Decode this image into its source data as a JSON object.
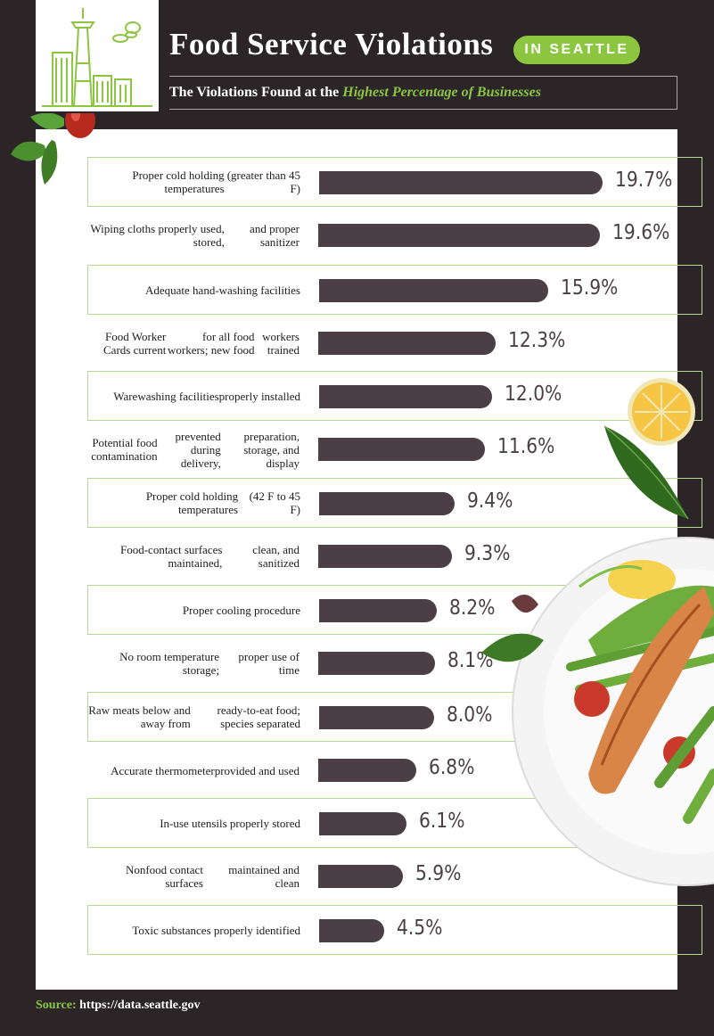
{
  "header": {
    "title": "Food Service Violations",
    "badge": "IN SEATTLE",
    "subtitle_prefix": "The Violations Found at the ",
    "subtitle_highlight": "Highest Percentage of Businesses"
  },
  "source": {
    "label": "Source:",
    "url": "https://data.seattle.gov"
  },
  "colors": {
    "background": "#2b2527",
    "accent_green": "#8cc540",
    "bar": "#4b3f45",
    "panel": "#ffffff"
  },
  "icons": [
    "seattle-skyline-icon",
    "basil-tomato-decoration",
    "lemon-leaf-decoration",
    "salmon-plate-decoration"
  ],
  "chart_data": {
    "type": "bar",
    "orientation": "horizontal",
    "value_suffix": "%",
    "xlim": [
      0,
      19.7
    ],
    "categories": [
      "Proper cold holding temperatures (greater than  45 F)",
      "Wiping cloths properly used, stored, and proper sanitizer",
      "Adequate hand-washing facilities",
      "Food Worker Cards current for all food workers; new food workers trained",
      "Warewashing facilities properly installed",
      "Potential food contamination prevented during delivery, preparation, storage, and display",
      "Proper cold holding temperatures (42 F to 45 F)",
      "Food-contact surfaces maintained, clean, and sanitized",
      "Proper cooling procedure",
      "No room temperature storage; proper use of time",
      "Raw meats below and away from ready-to-eat food; species separated",
      "Accurate thermometer provided and used",
      "In-use utensils properly stored",
      "Nonfood contact surfaces maintained and clean",
      "Toxic substances properly identified"
    ],
    "label_lines": [
      [
        "Proper cold holding temperatures",
        "(greater than  45 F)"
      ],
      [
        "Wiping cloths properly used, stored,",
        "and proper sanitizer"
      ],
      [
        "Adequate hand-washing facilities"
      ],
      [
        "Food Worker Cards current",
        "for all food workers; new food",
        "workers trained"
      ],
      [
        "Warewashing facilities",
        "properly installed"
      ],
      [
        "Potential food contamination",
        "prevented during delivery,",
        "preparation, storage, and display"
      ],
      [
        "Proper cold holding temperatures",
        "(42 F to 45 F)"
      ],
      [
        "Food-contact surfaces maintained,",
        "clean, and sanitized"
      ],
      [
        "Proper cooling procedure"
      ],
      [
        "No room temperature storage;",
        "proper use of time"
      ],
      [
        "Raw meats below and away from",
        "ready-to-eat food; species separated"
      ],
      [
        "Accurate thermometer",
        "provided and used"
      ],
      [
        "In-use utensils properly stored"
      ],
      [
        "Nonfood contact surfaces",
        "maintained and clean"
      ],
      [
        "Toxic substances properly identified"
      ]
    ],
    "values": [
      19.7,
      19.6,
      15.9,
      12.3,
      12.0,
      11.6,
      9.4,
      9.3,
      8.2,
      8.1,
      8.0,
      6.8,
      6.1,
      5.9,
      4.5
    ],
    "value_labels": [
      "19.7%",
      "19.6%",
      "15.9%",
      "12.3%",
      "12.0%",
      "11.6%",
      "9.4%",
      "9.3%",
      "8.2%",
      "8.1%",
      "8.0%",
      "6.8%",
      "6.1%",
      "5.9%",
      "4.5%"
    ]
  }
}
